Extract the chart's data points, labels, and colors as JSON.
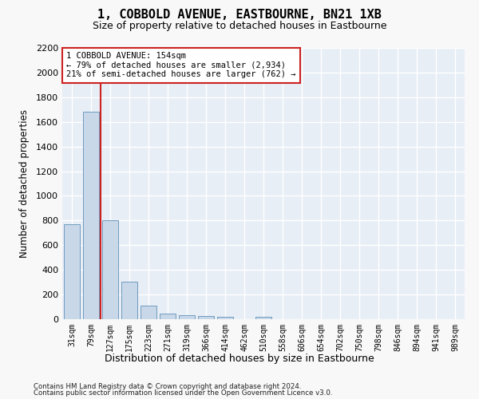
{
  "title": "1, COBBOLD AVENUE, EASTBOURNE, BN21 1XB",
  "subtitle": "Size of property relative to detached houses in Eastbourne",
  "xlabel": "Distribution of detached houses by size in Eastbourne",
  "ylabel": "Number of detached properties",
  "bar_color": "#c8d8e8",
  "bar_edge_color": "#6090b8",
  "background_color": "#e8eef6",
  "grid_color": "#ffffff",
  "bins": [
    "31sqm",
    "79sqm",
    "127sqm",
    "175sqm",
    "223sqm",
    "271sqm",
    "319sqm",
    "366sqm",
    "414sqm",
    "462sqm",
    "510sqm",
    "558sqm",
    "606sqm",
    "654sqm",
    "702sqm",
    "750sqm",
    "798sqm",
    "846sqm",
    "894sqm",
    "941sqm",
    "989sqm"
  ],
  "values": [
    770,
    1680,
    800,
    305,
    110,
    45,
    32,
    28,
    22,
    0,
    20,
    0,
    0,
    0,
    0,
    0,
    0,
    0,
    0,
    0,
    0
  ],
  "ylim": [
    0,
    2200
  ],
  "yticks": [
    0,
    200,
    400,
    600,
    800,
    1000,
    1200,
    1400,
    1600,
    1800,
    2000,
    2200
  ],
  "vline_pos": 1.5,
  "annotation_line1": "1 COBBOLD AVENUE: 154sqm",
  "annotation_line2": "← 79% of detached houses are smaller (2,934)",
  "annotation_line3": "21% of semi-detached houses are larger (762) →",
  "vline_color": "#cc2222",
  "annotation_box_facecolor": "#ffffff",
  "annotation_box_edgecolor": "#cc2222",
  "footer1": "Contains HM Land Registry data © Crown copyright and database right 2024.",
  "footer2": "Contains public sector information licensed under the Open Government Licence v3.0."
}
